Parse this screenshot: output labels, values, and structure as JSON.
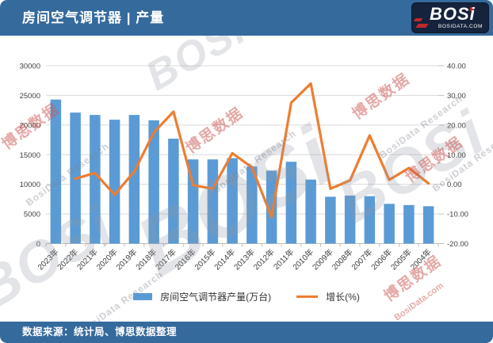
{
  "header": {
    "title": "房间空气调节器 | 产量",
    "logo_text": "BOSi",
    "logo_subtext": "BOSIDATA.COM"
  },
  "footer": {
    "source": "数据来源：统计局、博思数据整理"
  },
  "watermark": {
    "cn": "博思数据",
    "en": "BosiData Research",
    "site": "BosiData.com",
    "logo": "BOSi"
  },
  "chart_data": {
    "type": "bar+line",
    "title": "房间空气调节器 | 产量",
    "grid": true,
    "legend_position": "bottom",
    "categories": [
      "2023年",
      "2022年",
      "2021年",
      "2020年",
      "2019年",
      "2018年",
      "2017年",
      "2016年",
      "2015年",
      "2014年",
      "2013年",
      "2012年",
      "2011年",
      "2010年",
      "2009年",
      "2008年",
      "2007年",
      "2006年",
      "2005年",
      "2004年"
    ],
    "series": [
      {
        "name": "房间空气调节器产量(万台)",
        "type": "bar",
        "axis": "left",
        "color": "#5B9BD5",
        "values": [
          24300,
          22100,
          21700,
          20900,
          21700,
          20800,
          17700,
          14200,
          14200,
          14400,
          13000,
          12300,
          13800,
          10800,
          7900,
          8100,
          8000,
          6700,
          6500,
          6300
        ]
      },
      {
        "name": "增长(%)",
        "type": "line",
        "axis": "right",
        "color": "#ED7D31",
        "values": [
          null,
          1.9,
          3.8,
          -3.5,
          4.3,
          17.5,
          24.5,
          -0.3,
          -1.5,
          10.5,
          5.7,
          -11.0,
          27.5,
          34.0,
          -1.5,
          1.3,
          16.5,
          1.5,
          5.5,
          0.3
        ]
      }
    ],
    "left_axis": {
      "min": 0,
      "max": 30000,
      "tick_labels": [
        "0",
        "5000",
        "10000",
        "15000",
        "20000",
        "25000",
        "30000"
      ]
    },
    "right_axis": {
      "min": -20,
      "max": 40,
      "tick_labels": [
        "-20.00",
        "-10.00",
        "0.00",
        "10.00",
        "20.00",
        "30.00",
        "40.00"
      ]
    }
  }
}
